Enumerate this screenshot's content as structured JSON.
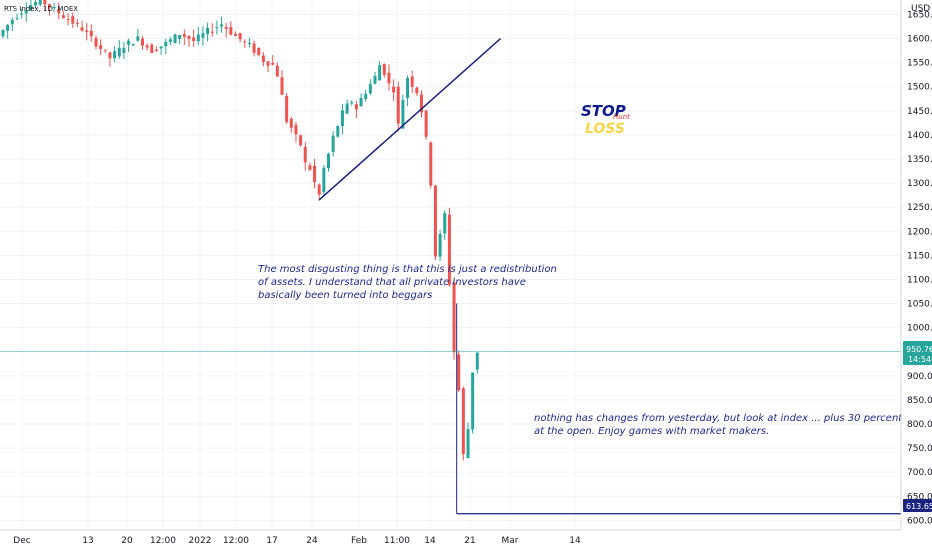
{
  "symbol_label": "RTS Index, 1D, MOEX",
  "currency_label": "USD",
  "current_price": "950.76",
  "countdown": "14:54",
  "stop_price": "613.65",
  "colors": {
    "up": "#26a69a",
    "down": "#ef5350",
    "trendline": "#1a237e",
    "stop_line": "#1a237e",
    "price_line": "#26a69a",
    "stop_text": "#0d1a8c",
    "loss_text": "#f5d547",
    "hunt_text": "#e53935",
    "annotation_text": "#1f2a8a"
  },
  "annotations": {
    "stop": "STOP",
    "loss": "LOSS",
    "hunt": "Hunt",
    "note1_line1": "The most disgusting thing is that this is just a redistribution",
    "note1_line2": "of assets. I understand that all private investors have",
    "note1_line3": "basically been turned into beggars",
    "note2_line1": "nothing has changes from yesterday, but look at index ... plus 30 percent",
    "note2_line2": "at the open. Enjoy games with market makers."
  },
  "chart_data": {
    "type": "candlestick",
    "y_ticks": [
      600,
      650,
      700,
      750,
      800,
      850,
      900,
      950,
      1000,
      1050,
      1100,
      1150,
      1200,
      1250,
      1300,
      1350,
      1400,
      1450,
      1500,
      1550,
      1600,
      1650
    ],
    "ylim": [
      580,
      1680
    ],
    "x_tick_labels": [
      "Dec",
      "13",
      "20",
      "12:00",
      "2022",
      "12:00",
      "17",
      "24",
      "Feb",
      "11:00",
      "14",
      "21",
      "Mar",
      "14"
    ],
    "grid": true,
    "price_path": [
      [
        0,
        1605
      ],
      [
        3,
        1640
      ],
      [
        6,
        1665
      ],
      [
        9,
        1680
      ],
      [
        12,
        1660
      ],
      [
        15,
        1640
      ],
      [
        18,
        1620
      ],
      [
        21,
        1590
      ],
      [
        24,
        1560
      ],
      [
        27,
        1585
      ],
      [
        30,
        1600
      ],
      [
        33,
        1575
      ],
      [
        36,
        1590
      ],
      [
        39,
        1610
      ],
      [
        42,
        1595
      ],
      [
        45,
        1615
      ],
      [
        48,
        1630
      ],
      [
        51,
        1605
      ],
      [
        54,
        1585
      ],
      [
        57,
        1555
      ],
      [
        59,
        1545
      ],
      [
        60,
        1525
      ],
      [
        61,
        1480
      ],
      [
        62,
        1430
      ],
      [
        63,
        1415
      ],
      [
        64,
        1395
      ],
      [
        65,
        1380
      ],
      [
        66,
        1340
      ],
      [
        67,
        1330
      ],
      [
        68,
        1300
      ],
      [
        69,
        1275
      ],
      [
        70,
        1330
      ],
      [
        71,
        1360
      ],
      [
        72,
        1395
      ],
      [
        73,
        1420
      ],
      [
        74,
        1445
      ],
      [
        75,
        1460
      ],
      [
        76,
        1470
      ],
      [
        77,
        1455
      ],
      [
        78,
        1475
      ],
      [
        79,
        1490
      ],
      [
        80,
        1505
      ],
      [
        81,
        1520
      ],
      [
        82,
        1545
      ],
      [
        83,
        1530
      ],
      [
        84,
        1505
      ],
      [
        85,
        1495
      ],
      [
        86,
        1420
      ],
      [
        87,
        1475
      ],
      [
        88,
        1520
      ],
      [
        89,
        1505
      ],
      [
        90,
        1490
      ],
      [
        91,
        1450
      ],
      [
        92,
        1390
      ],
      [
        93,
        1300
      ],
      [
        94,
        1150
      ],
      [
        95,
        1190
      ],
      [
        96,
        1235
      ],
      [
        98,
        950
      ],
      [
        99,
        870
      ],
      [
        100,
        735
      ],
      [
        101,
        790
      ],
      [
        102,
        910
      ],
      [
        103,
        950.76
      ]
    ],
    "trendline": {
      "from": [
        68,
        1265
      ],
      "to": [
        107,
        1600
      ]
    },
    "stop_level": {
      "from_index": 98,
      "value": 613.65
    }
  }
}
